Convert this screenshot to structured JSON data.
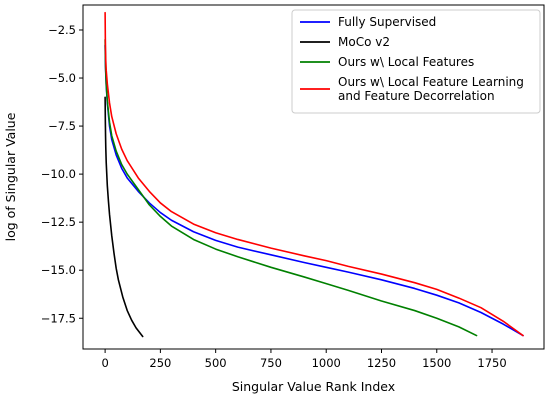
{
  "chart_data": {
    "type": "line",
    "title": "",
    "xlabel": "Singular Value Rank Index",
    "ylabel": "log of Singular Value",
    "xlim": [
      -100,
      1985
    ],
    "ylim": [
      -19.1,
      -1.2
    ],
    "xticks": [
      0,
      250,
      500,
      750,
      1000,
      1250,
      1500,
      1750
    ],
    "yticks": [
      -17.5,
      -15.0,
      -12.5,
      -10.0,
      -7.5,
      -5.0,
      -2.5
    ],
    "xtick_labels": [
      "0",
      "250",
      "500",
      "750",
      "1000",
      "1250",
      "1500",
      "1750"
    ],
    "ytick_labels": [
      "−17.5",
      "−15.0",
      "−12.5",
      "−10.0",
      "−7.5",
      "−5.0",
      "−2.5"
    ],
    "grid": false,
    "legend_position": "top-right",
    "series": [
      {
        "name": "Fully Supervised",
        "legend_lines": [
          "Fully Supervised"
        ],
        "color": "#0000ff",
        "x": [
          0,
          2,
          5,
          10,
          20,
          30,
          50,
          75,
          100,
          150,
          200,
          250,
          300,
          400,
          500,
          600,
          750,
          900,
          1000,
          1100,
          1250,
          1400,
          1500,
          1600,
          1700,
          1800,
          1890
        ],
        "y": [
          -3.3,
          -4.5,
          -5.4,
          -6.3,
          -7.5,
          -8.2,
          -9.0,
          -9.7,
          -10.2,
          -10.9,
          -11.5,
          -12.0,
          -12.4,
          -13.0,
          -13.45,
          -13.8,
          -14.2,
          -14.6,
          -14.85,
          -15.1,
          -15.5,
          -15.95,
          -16.3,
          -16.7,
          -17.2,
          -17.8,
          -18.4
        ]
      },
      {
        "name": "MoCo v2",
        "legend_lines": [
          "MoCo v2"
        ],
        "color": "#000000",
        "x": [
          0,
          1,
          2,
          3,
          5,
          10,
          15,
          20,
          30,
          40,
          50,
          60,
          80,
          100,
          120,
          140,
          160,
          170
        ],
        "y": [
          -6.0,
          -7.2,
          -8.0,
          -8.6,
          -9.4,
          -10.6,
          -11.4,
          -12.1,
          -13.2,
          -14.1,
          -14.9,
          -15.5,
          -16.4,
          -17.1,
          -17.6,
          -18.0,
          -18.3,
          -18.45
        ]
      },
      {
        "name": "Ours w\\ Local Features",
        "legend_lines": [
          "Ours w\\ Local Features"
        ],
        "color": "#008000",
        "x": [
          0,
          2,
          5,
          10,
          20,
          30,
          50,
          75,
          100,
          150,
          200,
          250,
          300,
          400,
          500,
          600,
          750,
          900,
          1000,
          1100,
          1250,
          1400,
          1500,
          1600,
          1680
        ],
        "y": [
          -3.0,
          -4.4,
          -5.3,
          -6.2,
          -7.3,
          -8.0,
          -8.8,
          -9.5,
          -10.0,
          -10.8,
          -11.6,
          -12.2,
          -12.7,
          -13.4,
          -13.9,
          -14.3,
          -14.85,
          -15.35,
          -15.7,
          -16.05,
          -16.6,
          -17.1,
          -17.5,
          -17.95,
          -18.4
        ]
      },
      {
        "name": "Ours w\\ Local Feature Learning and Feature Decorrelation",
        "legend_lines": [
          "Ours w\\ Local Feature Learning",
          "and Feature Decorrelation"
        ],
        "color": "#ff0000",
        "x": [
          0,
          1,
          2,
          3,
          5,
          10,
          20,
          30,
          50,
          75,
          100,
          150,
          200,
          250,
          300,
          400,
          500,
          600,
          750,
          900,
          1000,
          1100,
          1250,
          1400,
          1500,
          1600,
          1700,
          1800,
          1890
        ],
        "y": [
          -1.6,
          -2.9,
          -3.6,
          -4.1,
          -4.6,
          -5.3,
          -6.3,
          -7.0,
          -7.9,
          -8.7,
          -9.3,
          -10.2,
          -10.9,
          -11.5,
          -11.95,
          -12.6,
          -13.05,
          -13.4,
          -13.85,
          -14.25,
          -14.5,
          -14.8,
          -15.2,
          -15.65,
          -16.0,
          -16.45,
          -16.95,
          -17.65,
          -18.4
        ]
      }
    ]
  }
}
